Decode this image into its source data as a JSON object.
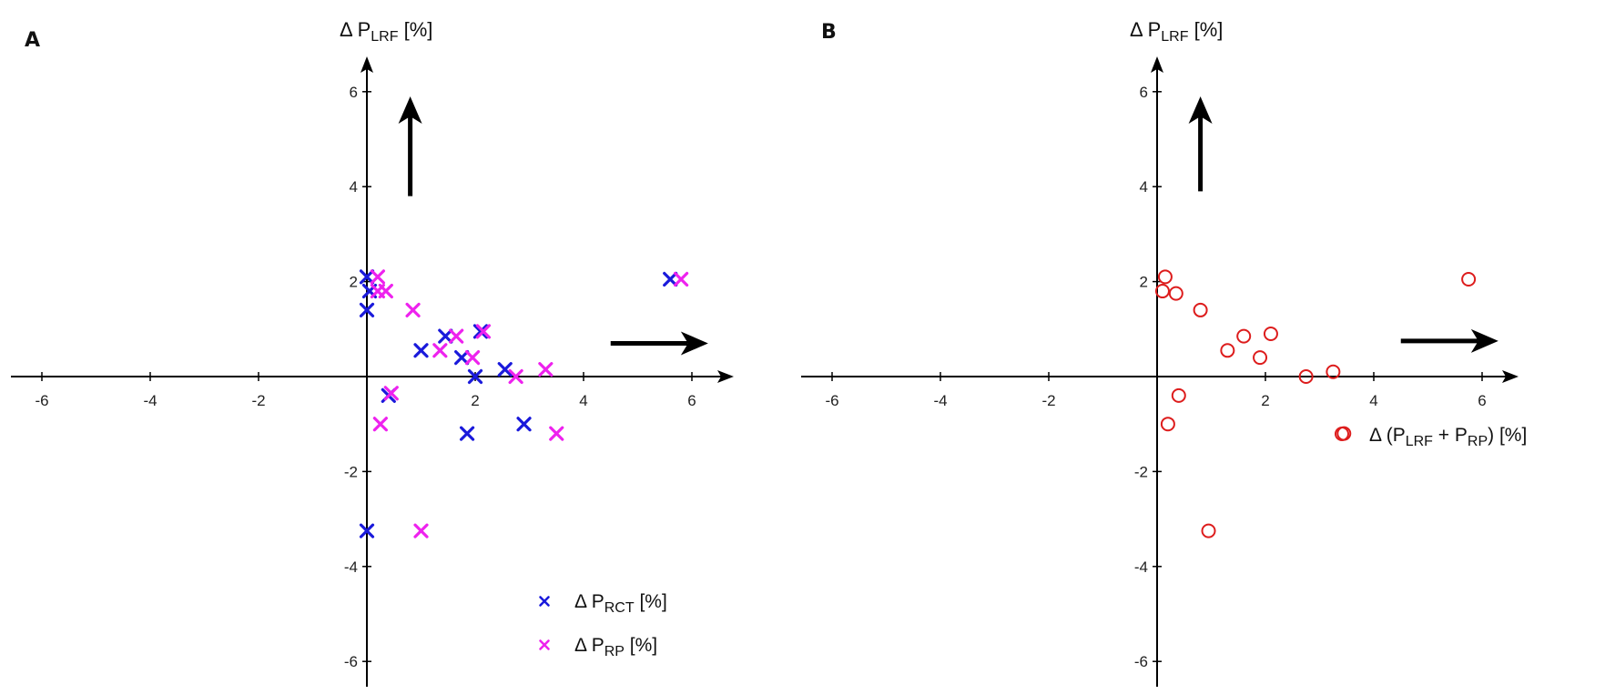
{
  "chart_data": [
    {
      "panel": "A",
      "type": "scatter",
      "xlim": [
        -6.5,
        6.5
      ],
      "ylim": [
        -6.5,
        6.5
      ],
      "xticks": [
        -6,
        -4,
        -2,
        2,
        4,
        6
      ],
      "yticks": [
        -6,
        -4,
        -2,
        2,
        4,
        6
      ],
      "ylabel": {
        "prefix": "Δ P",
        "sub": "LRF",
        "suffix": " [%]"
      },
      "series": [
        {
          "name": {
            "prefix": "Δ P",
            "sub": "RCT",
            "suffix": " [%]"
          },
          "marker": "x",
          "color": "#1a1adb",
          "points": [
            [
              0.0,
              2.1
            ],
            [
              0.05,
              1.8
            ],
            [
              0.0,
              1.4
            ],
            [
              0.4,
              -0.4
            ],
            [
              1.0,
              0.55
            ],
            [
              1.45,
              0.85
            ],
            [
              1.75,
              0.4
            ],
            [
              2.0,
              0.0
            ],
            [
              2.1,
              0.95
            ],
            [
              2.55,
              0.15
            ],
            [
              1.85,
              -1.2
            ],
            [
              2.9,
              -1.0
            ],
            [
              5.6,
              2.05
            ],
            [
              0.0,
              -3.25
            ]
          ]
        },
        {
          "name": {
            "prefix": "Δ P",
            "sub": "RP",
            "suffix": " [%]"
          },
          "marker": "x",
          "color": "#ee22ee",
          "points": [
            [
              0.2,
              2.1
            ],
            [
              0.2,
              1.8
            ],
            [
              0.35,
              1.8
            ],
            [
              0.85,
              1.4
            ],
            [
              0.45,
              -0.35
            ],
            [
              0.25,
              -1.0
            ],
            [
              1.35,
              0.55
            ],
            [
              1.65,
              0.85
            ],
            [
              1.95,
              0.4
            ],
            [
              2.15,
              0.95
            ],
            [
              2.75,
              0.0
            ],
            [
              3.3,
              0.15
            ],
            [
              3.5,
              -1.2
            ],
            [
              5.8,
              2.05
            ],
            [
              1.0,
              -3.25
            ]
          ]
        }
      ],
      "arrows": [
        {
          "dir": "up",
          "from": [
            0.8,
            3.8
          ],
          "to": [
            0.8,
            5.9
          ]
        },
        {
          "dir": "right",
          "from": [
            4.5,
            0.7
          ],
          "to": [
            6.3,
            0.7
          ]
        }
      ]
    },
    {
      "panel": "B",
      "type": "scatter",
      "xlim": [
        -6.5,
        6.5
      ],
      "ylim": [
        -6.5,
        6.5
      ],
      "xticks": [
        -6,
        -4,
        -2,
        2,
        4,
        6
      ],
      "yticks": [
        -6,
        -4,
        -2,
        2,
        4,
        6
      ],
      "ylabel": {
        "prefix": "Δ P",
        "sub": "LRF",
        "suffix": " [%]"
      },
      "series": [
        {
          "name": {
            "prefix": "Δ (P",
            "sub": "LRF",
            "mid": " + P",
            "sub2": "RP",
            "suffix": ") [%]"
          },
          "marker": "o",
          "color": "#dd1c1c",
          "points": [
            [
              0.15,
              2.1
            ],
            [
              0.1,
              1.8
            ],
            [
              0.35,
              1.75
            ],
            [
              0.8,
              1.4
            ],
            [
              0.4,
              -0.4
            ],
            [
              0.2,
              -1.0
            ],
            [
              1.3,
              0.55
            ],
            [
              1.6,
              0.85
            ],
            [
              1.9,
              0.4
            ],
            [
              2.1,
              0.9
            ],
            [
              2.75,
              0.0
            ],
            [
              3.25,
              0.1
            ],
            [
              3.45,
              -1.2
            ],
            [
              5.75,
              2.05
            ],
            [
              0.95,
              -3.25
            ]
          ]
        }
      ],
      "arrows": [
        {
          "dir": "up",
          "from": [
            0.8,
            3.9
          ],
          "to": [
            0.8,
            5.9
          ]
        },
        {
          "dir": "right",
          "from": [
            4.5,
            0.75
          ],
          "to": [
            6.3,
            0.75
          ]
        }
      ]
    }
  ]
}
